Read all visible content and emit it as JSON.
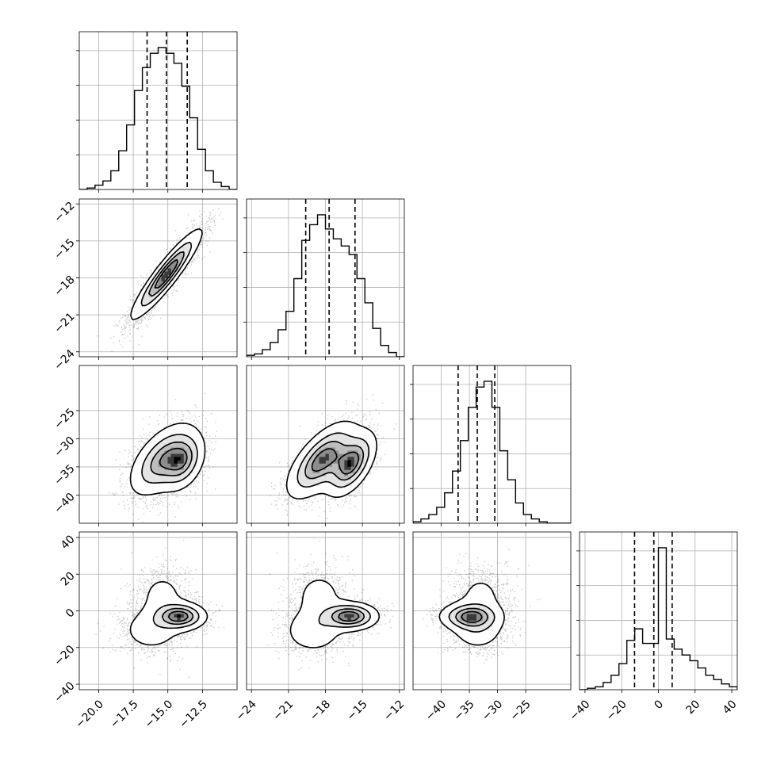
{
  "chart_data": {
    "type": "corner",
    "grid": true,
    "grid_color": "#b0b0b0",
    "hist_color": "#000000",
    "parameters": [
      {
        "range": [
          -21.4,
          -10.0
        ],
        "ticks": [
          -20.0,
          -17.5,
          -15.0,
          -12.5
        ],
        "tick_labels": [
          "−20.0",
          "−17.5",
          "−15.0",
          "−12.5"
        ],
        "quantiles": [
          -16.5,
          -15.1,
          -13.6
        ]
      },
      {
        "range": [
          -24.4,
          -11.6
        ],
        "ticks": [
          -24,
          -21,
          -18,
          -15,
          -12
        ],
        "tick_labels": [
          "−24",
          "−21",
          "−18",
          "−15",
          "−12"
        ],
        "quantiles": [
          -19.6,
          -17.7,
          -15.6
        ]
      },
      {
        "range": [
          -45.0,
          -17.0
        ],
        "ticks": [
          -40,
          -35,
          -30,
          -25
        ],
        "tick_labels": [
          "−40",
          "−35",
          "−30",
          "−25"
        ],
        "quantiles": [
          -37.0,
          -33.6,
          -30.5
        ]
      },
      {
        "range": [
          -43.0,
          43.0
        ],
        "ticks": [
          -40,
          -20,
          0,
          20,
          40
        ],
        "tick_labels": [
          "−40",
          "−20",
          "0",
          "20",
          "40"
        ],
        "quantiles": [
          -13.0,
          -2.5,
          7.5
        ]
      }
    ],
    "histograms": [
      {
        "edges": [
          -21.4,
          -20.83,
          -20.26,
          -19.69,
          -19.12,
          -18.55,
          -17.98,
          -17.41,
          -16.84,
          -16.27,
          -15.7,
          -15.13,
          -14.56,
          -13.99,
          -13.42,
          -12.85,
          -12.28,
          -11.71,
          -11.14,
          -10.57,
          -10.0
        ],
        "counts": [
          0.0,
          0.01,
          0.03,
          0.06,
          0.13,
          0.27,
          0.45,
          0.69,
          0.85,
          0.95,
          0.99,
          0.95,
          0.88,
          0.72,
          0.5,
          0.28,
          0.13,
          0.05,
          0.02,
          0.0
        ]
      },
      {
        "edges": [
          -24.4,
          -23.76,
          -23.12,
          -22.48,
          -21.84,
          -21.2,
          -20.56,
          -19.92,
          -19.28,
          -18.64,
          -18.0,
          -17.36,
          -16.72,
          -16.08,
          -15.44,
          -14.8,
          -14.16,
          -13.52,
          -12.88,
          -12.24,
          -11.6
        ],
        "counts": [
          0.01,
          0.02,
          0.05,
          0.1,
          0.19,
          0.32,
          0.55,
          0.82,
          0.93,
          1.0,
          0.9,
          0.83,
          0.78,
          0.72,
          0.55,
          0.38,
          0.2,
          0.08,
          0.03,
          0.0
        ]
      },
      {
        "edges": [
          -45.0,
          -43.6,
          -42.2,
          -40.8,
          -39.4,
          -38.0,
          -36.6,
          -35.2,
          -33.8,
          -32.4,
          -31.0,
          -29.6,
          -28.2,
          -26.8,
          -25.4,
          -24.0,
          -22.6,
          -21.2,
          -19.8,
          -18.4,
          -17.0
        ],
        "counts": [
          0.01,
          0.03,
          0.06,
          0.11,
          0.21,
          0.36,
          0.57,
          0.8,
          0.94,
          0.98,
          0.8,
          0.5,
          0.3,
          0.14,
          0.06,
          0.03,
          0.01,
          0.0,
          0.0,
          0.0
        ]
      },
      {
        "edges": [
          -43.0,
          -38.7,
          -34.4,
          -30.1,
          -25.8,
          -21.5,
          -17.2,
          -12.9,
          -8.6,
          -4.3,
          0.0,
          4.3,
          8.6,
          12.9,
          17.2,
          21.5,
          25.8,
          30.1,
          34.4,
          38.7,
          43.0
        ],
        "counts": [
          0.0,
          0.01,
          0.02,
          0.05,
          0.1,
          0.18,
          0.34,
          0.42,
          0.32,
          0.32,
          0.98,
          0.35,
          0.28,
          0.24,
          0.2,
          0.15,
          0.1,
          0.07,
          0.04,
          0.02
        ]
      }
    ],
    "pairs": [
      {
        "x": 0,
        "y": 1,
        "components": [
          {
            "w": 1.0,
            "mx": -15.1,
            "my": -17.7,
            "sx": 1.3,
            "sy": 1.85,
            "rho": 0.92
          }
        ]
      },
      {
        "x": 0,
        "y": 2,
        "components": [
          {
            "w": 0.65,
            "mx": -15.4,
            "my": -33.7,
            "sx": 1.25,
            "sy": 3.4,
            "rho": 0.55
          },
          {
            "w": 0.35,
            "mx": -13.9,
            "my": -34.2,
            "sx": 0.85,
            "sy": 2.7,
            "rho": 0.35
          }
        ]
      },
      {
        "x": 1,
        "y": 2,
        "components": [
          {
            "w": 0.6,
            "mx": -18.3,
            "my": -33.8,
            "sx": 1.45,
            "sy": 3.5,
            "rho": 0.65
          },
          {
            "w": 0.4,
            "mx": -15.9,
            "my": -34.5,
            "sx": 1.05,
            "sy": 3.0,
            "rho": 0.55
          }
        ]
      },
      {
        "x": 0,
        "y": 3,
        "components": [
          {
            "w": 0.45,
            "mx": -14.1,
            "my": -3.0,
            "sx": 1.0,
            "sy": 4.0,
            "rho": 0.0
          },
          {
            "w": 0.3,
            "mx": -16.2,
            "my": -10.5,
            "sx": 1.3,
            "sy": 7.0,
            "rho": 0.0
          },
          {
            "w": 0.25,
            "mx": -15.4,
            "my": 8.0,
            "sx": 1.1,
            "sy": 9.0,
            "rho": 0.0
          }
        ]
      },
      {
        "x": 1,
        "y": 3,
        "components": [
          {
            "w": 0.45,
            "mx": -16.0,
            "my": -3.0,
            "sx": 1.2,
            "sy": 4.0,
            "rho": 0.0
          },
          {
            "w": 0.3,
            "mx": -19.0,
            "my": -11.0,
            "sx": 1.4,
            "sy": 7.0,
            "rho": 0.0
          },
          {
            "w": 0.25,
            "mx": -18.5,
            "my": 8.0,
            "sx": 1.3,
            "sy": 9.0,
            "rho": 0.0
          }
        ]
      },
      {
        "x": 2,
        "y": 3,
        "components": [
          {
            "w": 0.45,
            "mx": -35.0,
            "my": -3.0,
            "sx": 2.8,
            "sy": 4.0,
            "rho": 0.0
          },
          {
            "w": 0.3,
            "mx": -33.5,
            "my": -10.0,
            "sx": 2.8,
            "sy": 7.0,
            "rho": 0.0
          },
          {
            "w": 0.25,
            "mx": -33.0,
            "my": 8.0,
            "sx": 2.8,
            "sy": 9.0,
            "rho": 0.0
          }
        ]
      }
    ]
  }
}
